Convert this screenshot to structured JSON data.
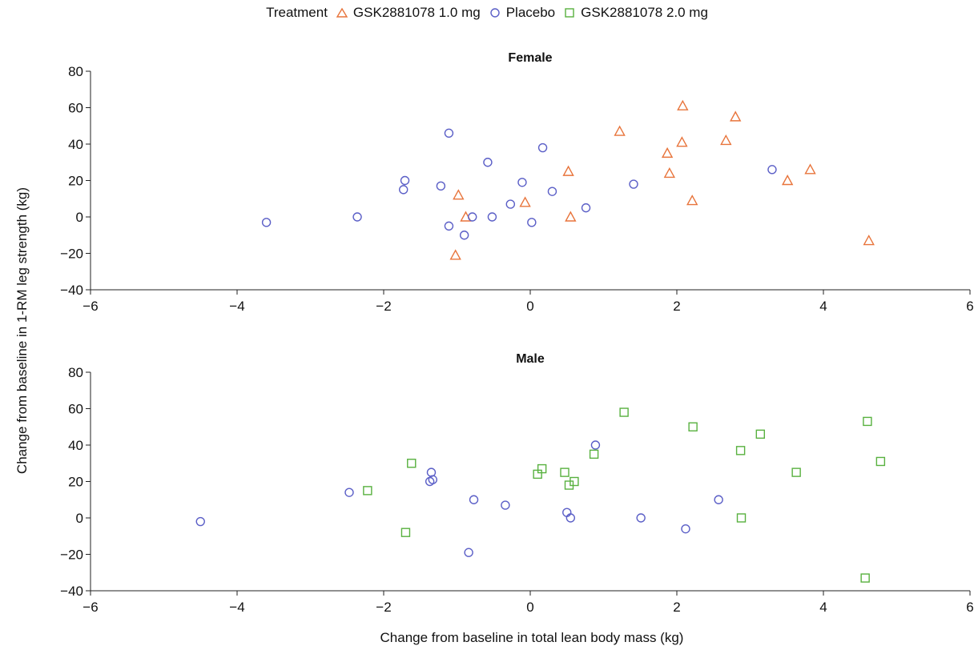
{
  "legend": {
    "title": "Treatment",
    "items": [
      {
        "label": "GSK2881078 1.0 mg",
        "color": "#e8743b",
        "marker": "triangle"
      },
      {
        "label": "Placebo",
        "color": "#5b5fc7",
        "marker": "circle"
      },
      {
        "label": "GSK2881078 2.0 mg",
        "color": "#58b13f",
        "marker": "square"
      }
    ]
  },
  "xlabel": "Change from baseline in total lean body mass (kg)",
  "ylabel": "Change from baseline in 1-RM leg strength (kg)",
  "chart_data": [
    {
      "type": "scatter",
      "title": "Female",
      "xlim": [
        -6,
        6
      ],
      "ylim": [
        -40,
        80
      ],
      "xticks": [
        -6,
        -4,
        -2,
        0,
        2,
        4,
        6
      ],
      "yticks": [
        -40,
        -20,
        0,
        20,
        40,
        60,
        80
      ],
      "series": [
        {
          "name": "GSK2881078 1.0 mg",
          "marker": "triangle",
          "color": "#e8743b",
          "points": [
            [
              -0.98,
              12
            ],
            [
              -0.88,
              0
            ],
            [
              -1.02,
              -21
            ],
            [
              -0.07,
              8
            ],
            [
              0.52,
              25
            ],
            [
              0.55,
              0
            ],
            [
              1.22,
              47
            ],
            [
              1.87,
              35
            ],
            [
              1.9,
              24
            ],
            [
              2.08,
              61
            ],
            [
              2.07,
              41
            ],
            [
              2.21,
              9
            ],
            [
              2.67,
              42
            ],
            [
              2.8,
              55
            ],
            [
              3.51,
              20
            ],
            [
              3.82,
              26
            ],
            [
              4.62,
              -13
            ]
          ]
        },
        {
          "name": "Placebo",
          "marker": "circle",
          "color": "#5b5fc7",
          "points": [
            [
              -3.6,
              -3
            ],
            [
              -2.36,
              0
            ],
            [
              -1.73,
              15
            ],
            [
              -1.71,
              20
            ],
            [
              -1.22,
              17
            ],
            [
              -1.11,
              46
            ],
            [
              -1.11,
              -5
            ],
            [
              -0.9,
              -10
            ],
            [
              -0.79,
              0
            ],
            [
              -0.58,
              30
            ],
            [
              -0.52,
              0
            ],
            [
              -0.27,
              7
            ],
            [
              -0.11,
              19
            ],
            [
              0.02,
              -3
            ],
            [
              0.17,
              38
            ],
            [
              0.3,
              14
            ],
            [
              0.76,
              5
            ],
            [
              1.41,
              18
            ],
            [
              3.3,
              26
            ]
          ]
        }
      ]
    },
    {
      "type": "scatter",
      "title": "Male",
      "xlim": [
        -6,
        6
      ],
      "ylim": [
        -40,
        80
      ],
      "xticks": [
        -6,
        -4,
        -2,
        0,
        2,
        4,
        6
      ],
      "yticks": [
        -40,
        -20,
        0,
        20,
        40,
        60,
        80
      ],
      "series": [
        {
          "name": "Placebo",
          "marker": "circle",
          "color": "#5b5fc7",
          "points": [
            [
              -4.5,
              -2
            ],
            [
              -2.47,
              14
            ],
            [
              -1.37,
              20
            ],
            [
              -1.35,
              25
            ],
            [
              -1.33,
              21
            ],
            [
              -0.84,
              -19
            ],
            [
              -0.77,
              10
            ],
            [
              -0.34,
              7
            ],
            [
              0.5,
              3
            ],
            [
              0.55,
              0
            ],
            [
              0.89,
              40
            ],
            [
              1.51,
              0
            ],
            [
              2.12,
              -6
            ],
            [
              2.57,
              10
            ]
          ]
        },
        {
          "name": "GSK2881078 2.0 mg",
          "marker": "square",
          "color": "#58b13f",
          "points": [
            [
              -2.22,
              15
            ],
            [
              -1.62,
              30
            ],
            [
              -1.7,
              -8
            ],
            [
              0.1,
              24
            ],
            [
              0.16,
              27
            ],
            [
              0.47,
              25
            ],
            [
              0.53,
              18
            ],
            [
              0.6,
              20
            ],
            [
              0.87,
              35
            ],
            [
              1.28,
              58
            ],
            [
              2.22,
              50
            ],
            [
              2.87,
              37
            ],
            [
              2.88,
              0
            ],
            [
              3.14,
              46
            ],
            [
              3.63,
              25
            ],
            [
              4.6,
              53
            ],
            [
              4.78,
              31
            ],
            [
              4.57,
              -33
            ]
          ]
        }
      ]
    }
  ]
}
